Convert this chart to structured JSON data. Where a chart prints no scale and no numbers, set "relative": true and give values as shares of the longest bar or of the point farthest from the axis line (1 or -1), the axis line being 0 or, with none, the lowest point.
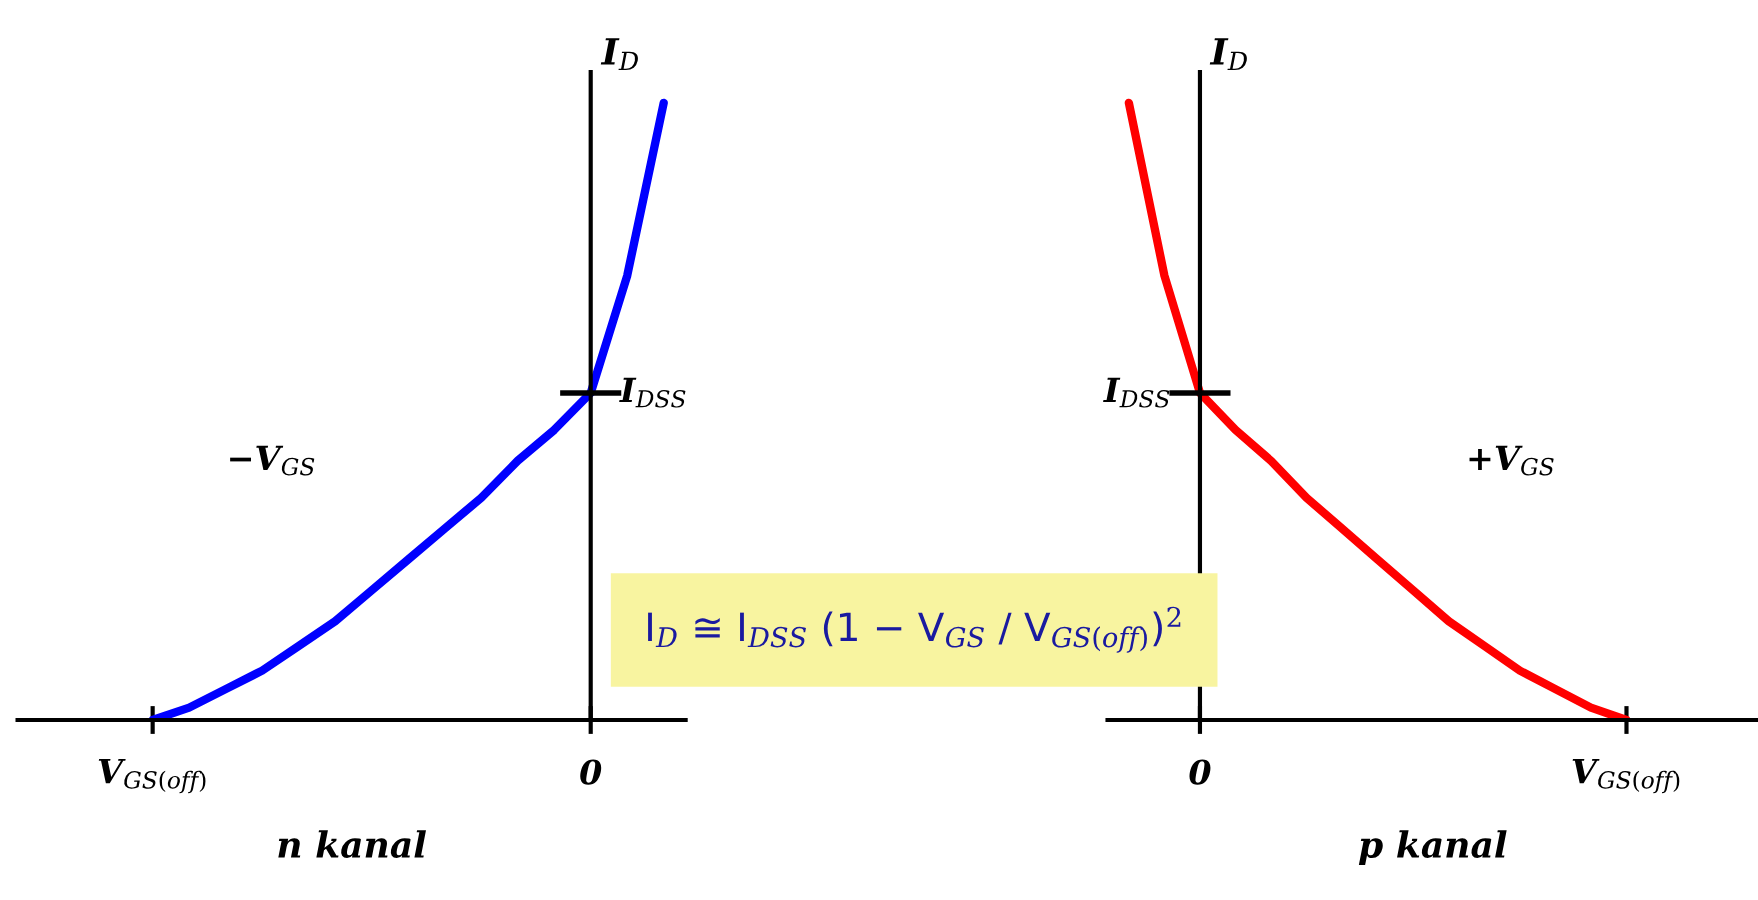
{
  "chart_data": [
    {
      "type": "line",
      "relative": true,
      "xlabel": "n kanal",
      "ylabel": "I$_{D}$",
      "categories": [
        "V$_{GS(off)}$",
        null,
        null,
        null,
        null,
        null,
        null,
        null,
        null,
        null,
        null,
        null,
        "0",
        null,
        null
      ],
      "series": [
        {
          "color": "#0000ff",
          "values": [
            0,
            0.02,
            0.05,
            0.08,
            0.12,
            0.16,
            0.21,
            0.26,
            0.31,
            0.36,
            0.42,
            0.47,
            0.53,
            0.72,
            1.0
          ]
        }
      ],
      "annotations": [
        {
          "text": "I$_{DSS}$",
          "x": "0",
          "y": 0.53
        },
        "−V$_{GS}$",
        "I$_{D}$ ≅ I$_{DSS}$ (1 − V$_{GS}$ / V$_{GS(off)}$)$^{2}$"
      ]
    },
    {
      "type": "line",
      "relative": true,
      "xlabel": "p kanal",
      "ylabel": "I$_{D}$",
      "categories": [
        null,
        null,
        "0",
        null,
        null,
        null,
        null,
        null,
        null,
        null,
        null,
        null,
        null,
        null,
        "V$_{GS(off)}$"
      ],
      "series": [
        {
          "color": "#ff0000",
          "values": [
            1.0,
            0.72,
            0.53,
            0.47,
            0.42,
            0.36,
            0.31,
            0.26,
            0.21,
            0.16,
            0.12,
            0.08,
            0.05,
            0.02,
            0
          ]
        }
      ],
      "annotations": [
        {
          "text": "I$_{DSS}$",
          "x": "0",
          "y": 0.53
        },
        "+V$_{GS}$"
      ]
    }
  ]
}
